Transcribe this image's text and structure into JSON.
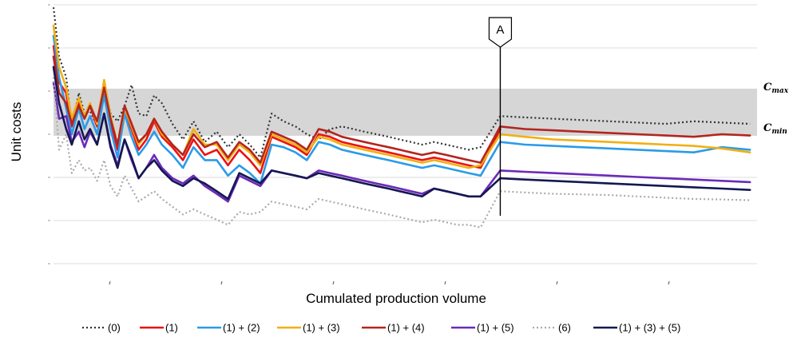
{
  "chart_data": {
    "type": "line",
    "xlabel": "Cumulated production volume",
    "ylabel": "Unit costs",
    "xlim": [
      0,
      100
    ],
    "ylim": [
      0,
      100
    ],
    "band": {
      "low": 49.4,
      "high": 67.6
    },
    "band_labels": {
      "max": "C",
      "max_sub": "max",
      "min": "C",
      "min_sub": "min"
    },
    "marker": {
      "x": 63.5,
      "label": "A"
    },
    "legend_position": "bottom",
    "series": [
      {
        "name": "(0)",
        "color": "#333333",
        "dash": "dot",
        "x": [
          0,
          0.8,
          1.8,
          2.6,
          3.6,
          4.4,
          5.2,
          6.2,
          7.2,
          8.1,
          9.1,
          10.1,
          11.1,
          12.1,
          13.2,
          14.3,
          15.4,
          16.9,
          18.4,
          19.9,
          21.5,
          23.2,
          24.8,
          26.4,
          27.9,
          29.4,
          31.0,
          32.7,
          34.4,
          36.0,
          37.7,
          39.3,
          41.0,
          42.6,
          44.2,
          45.9,
          47.6,
          49.2,
          50.8,
          52.4,
          54.1,
          55.8,
          57.4,
          59.0,
          60.7,
          63.5,
          67,
          71,
          75,
          79,
          83,
          87,
          91,
          95,
          99
        ],
        "y": [
          99,
          80,
          72,
          53,
          66,
          58,
          59,
          53,
          70,
          58,
          55,
          61,
          69,
          58,
          57,
          65,
          62,
          54,
          48,
          55,
          47,
          51,
          45,
          50,
          46,
          41,
          58,
          55,
          53,
          50,
          48,
          52,
          53,
          52,
          51,
          50,
          49,
          48,
          47,
          46,
          47,
          46,
          45,
          44,
          45,
          57,
          56.5,
          56,
          55.5,
          55,
          54.5,
          54,
          55,
          54.5,
          54
        ]
      },
      {
        "name": "(1)",
        "color": "#ee1111",
        "dash": "solid",
        "x": [
          0,
          0.8,
          1.8,
          2.6,
          3.6,
          4.4,
          5.2,
          6.2,
          7.2,
          8.1,
          9.1,
          10.1,
          11.1,
          12.1,
          13.2,
          14.3,
          15.4,
          16.9,
          18.4,
          19.9,
          21.5,
          23.2,
          24.8,
          26.4,
          27.9,
          29.4,
          31.0,
          32.7,
          34.4,
          36.0,
          37.7,
          39.3,
          41.0,
          42.6,
          44.2,
          45.9,
          47.6,
          49.2,
          50.8,
          52.4,
          54.1,
          55.8,
          57.4,
          59.0,
          60.7,
          63.5
        ],
        "y": [
          84,
          70,
          66,
          53,
          62,
          57,
          61,
          53,
          65,
          54,
          44,
          58,
          52,
          44,
          48,
          55,
          49,
          45,
          40,
          48,
          42,
          44,
          38,
          44,
          40,
          35,
          49,
          47,
          45,
          42,
          50,
          49,
          47,
          46,
          45,
          44,
          43,
          42,
          41,
          40,
          41,
          40,
          39,
          38,
          37,
          52
        ]
      },
      {
        "name": "(1) + (2)",
        "color": "#2b9be8",
        "dash": "solid",
        "x": [
          0,
          0.8,
          1.8,
          2.6,
          3.6,
          4.4,
          5.2,
          6.2,
          7.2,
          8.1,
          9.1,
          10.1,
          11.1,
          12.1,
          13.2,
          14.3,
          15.4,
          16.9,
          18.4,
          19.9,
          21.5,
          23.2,
          24.8,
          26.4,
          27.9,
          29.4,
          31.0,
          32.7,
          34.4,
          36.0,
          37.7,
          39.3,
          41.0,
          42.6,
          44.2,
          45.9,
          47.6,
          49.2,
          50.8,
          52.4,
          54.1,
          55.8,
          57.4,
          59.0,
          60.7,
          63.5,
          67,
          71,
          75,
          79,
          83,
          87,
          91,
          95,
          99
        ],
        "y": [
          88,
          72,
          60,
          50,
          60,
          52,
          57,
          50,
          65,
          52,
          41,
          58,
          49,
          42,
          46,
          51,
          46,
          42,
          37,
          45,
          40,
          40,
          34,
          38,
          35,
          31,
          46,
          45,
          43,
          40,
          47,
          46,
          44,
          43,
          42,
          41,
          40,
          39,
          38,
          37,
          38,
          37,
          36,
          35,
          34,
          47,
          46,
          45.5,
          45,
          44.5,
          44,
          43.5,
          43,
          45,
          44
        ]
      },
      {
        "name": "(1) + (3)",
        "color": "#f0b014",
        "dash": "solid",
        "x": [
          0,
          0.8,
          1.8,
          2.6,
          3.6,
          4.4,
          5.2,
          6.2,
          7.2,
          8.1,
          9.1,
          10.1,
          11.1,
          12.1,
          13.2,
          14.3,
          15.4,
          16.9,
          18.4,
          19.9,
          21.5,
          23.2,
          24.8,
          26.4,
          27.9,
          29.4,
          31.0,
          32.7,
          34.4,
          36.0,
          37.7,
          39.3,
          41.0,
          42.6,
          44.2,
          45.9,
          47.6,
          49.2,
          50.8,
          52.4,
          54.1,
          55.8,
          57.4,
          59.0,
          60.7,
          63.5,
          67,
          71,
          75,
          79,
          83,
          87,
          91,
          95,
          99
        ],
        "y": [
          92,
          76,
          68,
          56,
          64,
          57,
          62,
          54,
          71,
          57,
          46,
          60,
          53,
          46,
          50,
          56,
          50,
          46,
          42,
          52,
          46,
          46,
          40,
          46,
          43,
          38,
          50,
          48,
          46,
          43,
          49,
          48,
          46,
          45,
          44,
          43,
          42,
          41,
          40,
          39,
          40,
          39,
          38,
          37,
          38,
          50,
          49,
          48,
          47.5,
          47,
          46.5,
          46,
          45.5,
          44.5,
          43
        ]
      },
      {
        "name": "(1) + (4)",
        "color": "#b3251e",
        "dash": "solid",
        "x": [
          0,
          0.8,
          1.8,
          2.6,
          3.6,
          4.4,
          5.2,
          6.2,
          7.2,
          8.1,
          9.1,
          10.1,
          11.1,
          12.1,
          13.2,
          14.3,
          15.4,
          16.9,
          18.4,
          19.9,
          21.5,
          23.2,
          24.8,
          26.4,
          27.9,
          29.4,
          31.0,
          32.7,
          34.4,
          36.0,
          37.7,
          39.3,
          41.0,
          42.6,
          44.2,
          45.9,
          47.6,
          49.2,
          50.8,
          52.4,
          54.1,
          55.8,
          57.4,
          59.0,
          60.7,
          63.5,
          67,
          71,
          75,
          79,
          83,
          87,
          91,
          95,
          99
        ],
        "y": [
          80,
          66,
          62,
          54,
          61,
          56,
          61,
          55,
          68,
          56,
          46,
          61,
          54,
          47,
          50,
          56,
          51,
          46,
          42,
          50,
          45,
          47,
          41,
          47,
          44,
          39,
          51,
          49,
          47,
          44,
          52,
          51,
          49,
          48,
          47,
          46,
          45,
          44,
          43,
          42,
          43,
          42,
          41,
          40,
          39,
          53,
          52,
          51.5,
          51,
          50.5,
          50,
          49.5,
          49,
          50,
          49.5
        ]
      },
      {
        "name": "(1) + (5)",
        "color": "#6b2ab8",
        "dash": "solid",
        "x": [
          0,
          0.8,
          1.8,
          2.6,
          3.6,
          4.4,
          5.2,
          6.2,
          7.2,
          8.1,
          9.1,
          10.1,
          11.1,
          12.1,
          13.2,
          14.3,
          15.4,
          16.9,
          18.4,
          19.9,
          21.5,
          23.2,
          24.8,
          26.4,
          27.9,
          29.4,
          31.0,
          32.7,
          34.4,
          36.0,
          37.7,
          39.3,
          41.0,
          42.6,
          44.2,
          45.9,
          47.6,
          49.2,
          50.8,
          52.4,
          54.1,
          55.8,
          57.4,
          59.0,
          60.7,
          63.5,
          67,
          71,
          75,
          79,
          83,
          87,
          91,
          95,
          99
        ],
        "y": [
          70,
          56,
          57,
          47,
          51,
          45,
          51,
          46,
          58,
          46,
          38,
          48,
          40,
          33,
          37,
          42,
          37,
          33,
          31,
          34,
          30,
          27,
          24,
          34,
          32,
          30,
          36,
          35,
          34,
          33,
          36,
          35,
          34,
          33,
          32,
          31,
          30,
          29,
          28,
          27,
          29,
          28,
          27,
          26,
          26,
          36,
          35.5,
          35,
          34.5,
          34,
          33.5,
          33,
          32.5,
          32,
          31.5
        ]
      },
      {
        "name": "(6)",
        "color": "#aaaaaa",
        "dash": "dot",
        "x": [
          0,
          0.8,
          1.8,
          2.6,
          3.6,
          4.4,
          5.2,
          6.2,
          7.2,
          8.1,
          9.1,
          10.1,
          11.1,
          12.1,
          13.2,
          14.3,
          15.4,
          16.9,
          18.4,
          19.9,
          21.5,
          23.2,
          24.8,
          26.4,
          27.9,
          29.4,
          31.0,
          32.7,
          34.4,
          36.0,
          37.7,
          39.3,
          41.0,
          42.6,
          44.2,
          45.9,
          47.6,
          49.2,
          50.8,
          52.4,
          54.1,
          55.8,
          57.4,
          59.0,
          60.7,
          63.5,
          67,
          71,
          75,
          79,
          83,
          87,
          91,
          95,
          99
        ],
        "y": [
          72,
          44,
          50,
          35,
          40,
          36,
          37,
          32,
          40,
          30,
          26,
          34,
          29,
          24,
          26,
          28,
          25,
          22,
          19,
          21,
          19,
          17,
          15,
          20,
          19,
          20,
          24,
          23,
          22,
          21,
          25,
          24,
          23,
          22,
          21,
          20,
          19,
          18,
          17,
          16,
          17,
          16,
          15,
          15,
          14,
          28,
          27.5,
          27,
          26.8,
          26.5,
          26,
          25.5,
          25,
          24.8,
          24.5
        ]
      },
      {
        "name": "(1) + (3) + (5)",
        "color": "#141852",
        "dash": "solid",
        "x": [
          0,
          0.8,
          1.8,
          2.6,
          3.6,
          4.4,
          5.2,
          6.2,
          7.2,
          8.1,
          9.1,
          10.1,
          11.1,
          12.1,
          13.2,
          14.3,
          15.4,
          16.9,
          18.4,
          19.9,
          21.5,
          23.2,
          24.8,
          26.4,
          27.9,
          29.4,
          31.0,
          32.7,
          34.4,
          36.0,
          37.7,
          39.3,
          41.0,
          42.6,
          44.2,
          45.9,
          47.6,
          49.2,
          50.8,
          52.4,
          54.1,
          55.8,
          57.4,
          59.0,
          60.7,
          63.5,
          67,
          71,
          75,
          79,
          83,
          87,
          91,
          95,
          99
        ],
        "y": [
          76,
          62,
          52,
          46,
          55,
          48,
          52,
          46,
          58,
          45,
          37,
          48,
          41,
          33,
          37,
          40,
          36,
          32,
          30,
          33,
          31,
          28,
          25,
          35,
          33,
          31,
          36,
          35,
          34,
          33,
          35,
          34,
          33,
          32,
          31,
          30,
          29,
          28,
          27,
          26,
          29,
          28,
          27,
          26,
          26,
          33,
          32.5,
          32,
          31.5,
          31,
          30.5,
          30,
          29.5,
          29,
          28.5
        ]
      }
    ]
  }
}
